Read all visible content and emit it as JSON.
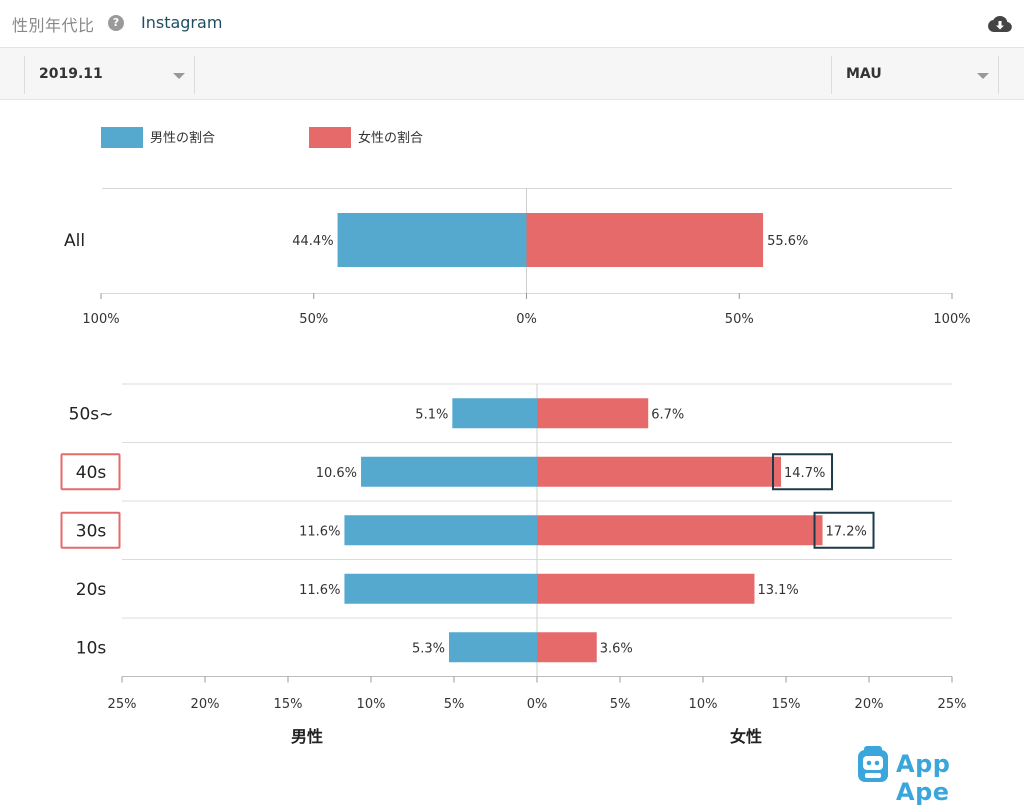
{
  "header": {
    "title": "性別年代比",
    "help_icon": "question-circle-icon",
    "app_name": "Instagram",
    "download_icon": "cloud-download-icon"
  },
  "filters": {
    "period": {
      "value": "2019.11"
    },
    "metric": {
      "value": "MAU"
    }
  },
  "colors": {
    "male": "#55a9cf",
    "female": "#e76a6b",
    "highlight_category": "#e76a6b",
    "highlight_value": "#1c3a48",
    "brand": "#3aa6dc"
  },
  "chart_data": [
    {
      "type": "bar",
      "orientation": "horizontal-diverging",
      "legend": [
        "男性の割合",
        "女性の割合"
      ],
      "legend_position": "top-left",
      "categories": [
        "All"
      ],
      "series": [
        {
          "name": "男性の割合",
          "values": [
            44.4
          ],
          "labels": [
            "44.4%"
          ]
        },
        {
          "name": "女性の割合",
          "values": [
            55.6
          ],
          "labels": [
            "55.6%"
          ]
        }
      ],
      "xlim": [
        -100,
        100
      ],
      "tick_values": [
        -100,
        -50,
        0,
        50,
        100
      ],
      "tick_labels": [
        "100%",
        "50%",
        "0%",
        "50%",
        "100%"
      ]
    },
    {
      "type": "bar",
      "orientation": "horizontal-diverging",
      "categories": [
        "50s~",
        "40s",
        "30s",
        "20s",
        "10s"
      ],
      "highlighted_categories": [
        "40s",
        "30s"
      ],
      "series": [
        {
          "name": "男性",
          "values": [
            5.1,
            10.6,
            11.6,
            11.6,
            5.3
          ],
          "labels": [
            "5.1%",
            "10.6%",
            "11.6%",
            "11.6%",
            "5.3%"
          ]
        },
        {
          "name": "女性",
          "values": [
            6.7,
            14.7,
            17.2,
            13.1,
            3.6
          ],
          "labels": [
            "6.7%",
            "14.7%",
            "17.2%",
            "13.1%",
            "3.6%"
          ],
          "highlighted_values": [
            14.7,
            17.2
          ]
        }
      ],
      "xlim": [
        -25,
        25
      ],
      "tick_values": [
        -25,
        -20,
        -15,
        -10,
        -5,
        0,
        5,
        10,
        15,
        20,
        25
      ],
      "tick_labels": [
        "25%",
        "20%",
        "15%",
        "10%",
        "5%",
        "0%",
        "5%",
        "10%",
        "15%",
        "20%",
        "25%"
      ],
      "xlabel_left": "男性",
      "xlabel_right": "女性"
    }
  ],
  "branding": {
    "text": "App Ape",
    "logo_icon": "app-ape-logo-icon"
  }
}
